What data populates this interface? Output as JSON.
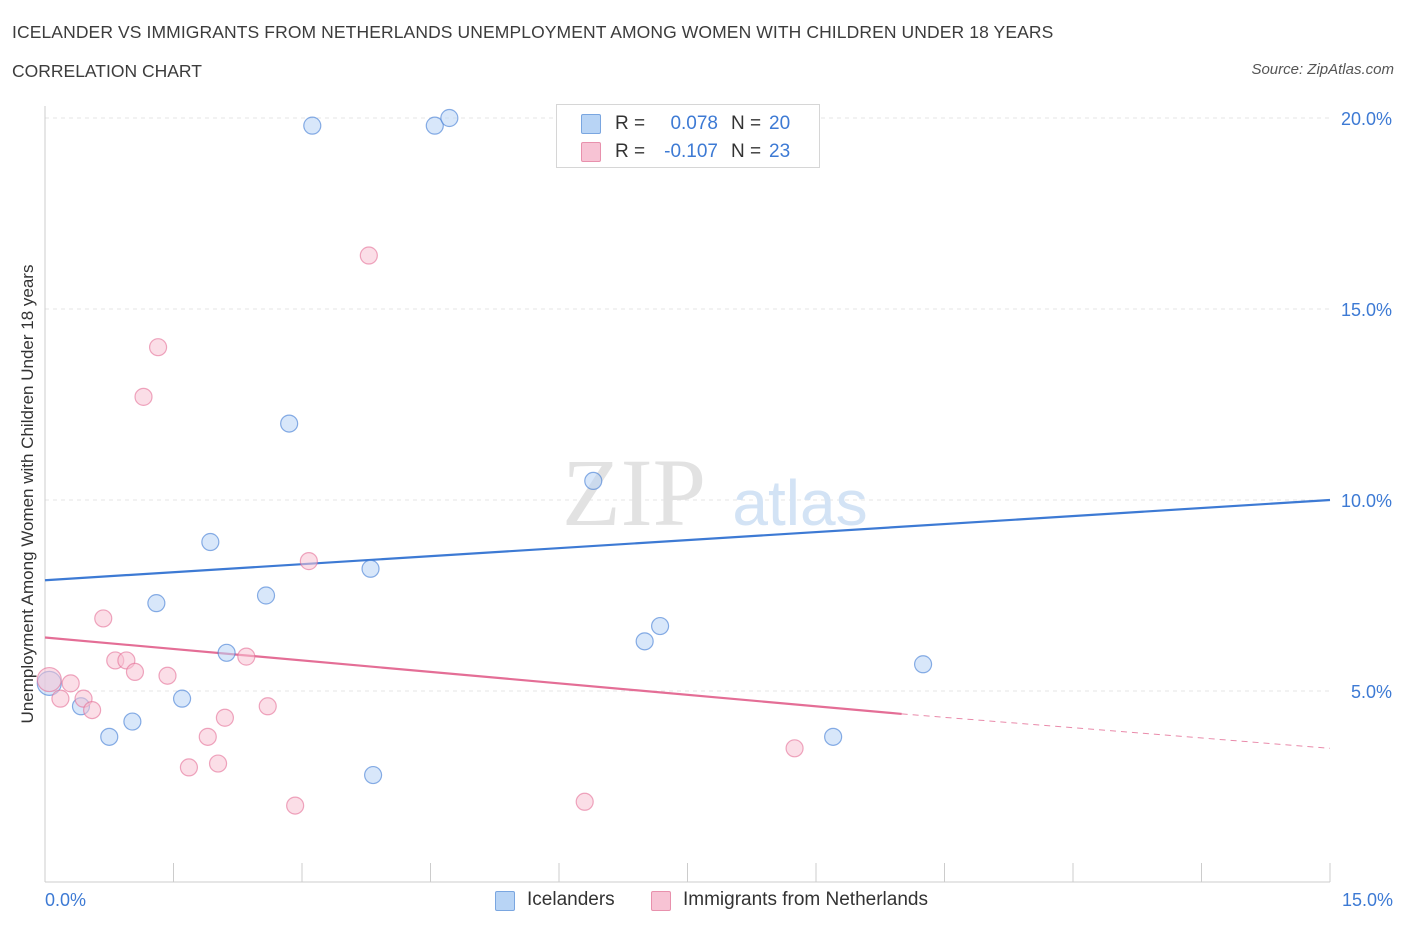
{
  "title": "ICELANDER VS IMMIGRANTS FROM NETHERLANDS UNEMPLOYMENT AMONG WOMEN WITH CHILDREN UNDER 18 YEARS",
  "subtitle": "CORRELATION CHART",
  "source": "Source: ZipAtlas.com",
  "watermark": {
    "zip": "ZIP",
    "atlas": "atlas"
  },
  "legend": {
    "series1": {
      "r_label": "R =",
      "r_value": "0.078",
      "n_label": "N =",
      "n_value": "20"
    },
    "series2": {
      "r_label": "R =",
      "r_value": "-0.107",
      "n_label": "N =",
      "n_value": "23"
    }
  },
  "x_axis": {
    "min_label": "0.0%",
    "max_label": "15.0%"
  },
  "y_axis_title": "Unemployment Among Women with Children Under 18 years",
  "colors": {
    "blue": "#3d7ad4",
    "blue_fill": "#b8d4f5",
    "pink": "#e46e96",
    "pink_fill": "#f7c3d4"
  },
  "chart_data": {
    "type": "scatter",
    "title": "ICELANDER VS IMMIGRANTS FROM NETHERLANDS UNEMPLOYMENT AMONG WOMEN WITH CHILDREN UNDER 18 YEARS",
    "xlabel": "",
    "ylabel": "Unemployment Among Women with Children Under 18 years",
    "xlim": [
      0,
      15
    ],
    "ylim": [
      0,
      20
    ],
    "y_ticks": [
      {
        "value": 5,
        "label": "5.0%"
      },
      {
        "value": 10,
        "label": "10.0%"
      },
      {
        "value": 15,
        "label": "15.0%"
      },
      {
        "value": 20,
        "label": "20.0%"
      }
    ],
    "series": [
      {
        "name": "Icelanders",
        "color": "#3d7ad4",
        "fill": "#b8d4f5",
        "points": [
          [
            0.05,
            5.2
          ],
          [
            0.42,
            4.6
          ],
          [
            0.75,
            3.8
          ],
          [
            1.02,
            4.2
          ],
          [
            1.3,
            7.3
          ],
          [
            1.6,
            4.8
          ],
          [
            1.93,
            8.9
          ],
          [
            2.12,
            6.0
          ],
          [
            2.58,
            7.5
          ],
          [
            2.85,
            12.0
          ],
          [
            3.12,
            19.8
          ],
          [
            3.8,
            8.2
          ],
          [
            3.83,
            2.8
          ],
          [
            4.55,
            19.8
          ],
          [
            4.72,
            20.0
          ],
          [
            6.4,
            10.5
          ],
          [
            7.0,
            6.3
          ],
          [
            7.18,
            6.7
          ],
          [
            9.2,
            3.8
          ],
          [
            10.25,
            5.7
          ]
        ],
        "trend": {
          "x_start": 0,
          "y_start": 7.9,
          "x_end": 15,
          "y_end": 10.0
        }
      },
      {
        "name": "Immigrants from Netherlands",
        "color": "#e46e96",
        "fill": "#f7c3d4",
        "points": [
          [
            0.05,
            5.3
          ],
          [
            0.18,
            4.8
          ],
          [
            0.3,
            5.2
          ],
          [
            0.45,
            4.8
          ],
          [
            0.55,
            4.5
          ],
          [
            0.68,
            6.9
          ],
          [
            0.82,
            5.8
          ],
          [
            0.95,
            5.8
          ],
          [
            1.05,
            5.5
          ],
          [
            1.15,
            12.7
          ],
          [
            1.32,
            14.0
          ],
          [
            1.43,
            5.4
          ],
          [
            1.68,
            3.0
          ],
          [
            1.9,
            3.8
          ],
          [
            2.02,
            3.1
          ],
          [
            2.1,
            4.3
          ],
          [
            2.35,
            5.9
          ],
          [
            2.6,
            4.6
          ],
          [
            2.92,
            2.0
          ],
          [
            3.08,
            8.4
          ],
          [
            3.78,
            16.4
          ],
          [
            6.3,
            2.1
          ],
          [
            8.75,
            3.5
          ]
        ],
        "trend": {
          "x_start": 0,
          "y_start": 6.4,
          "x_end": 10.0,
          "y_end": 4.4,
          "dashed_to_x": 15,
          "dashed_to_y": 3.5
        }
      }
    ],
    "legend_position": "top-center"
  }
}
